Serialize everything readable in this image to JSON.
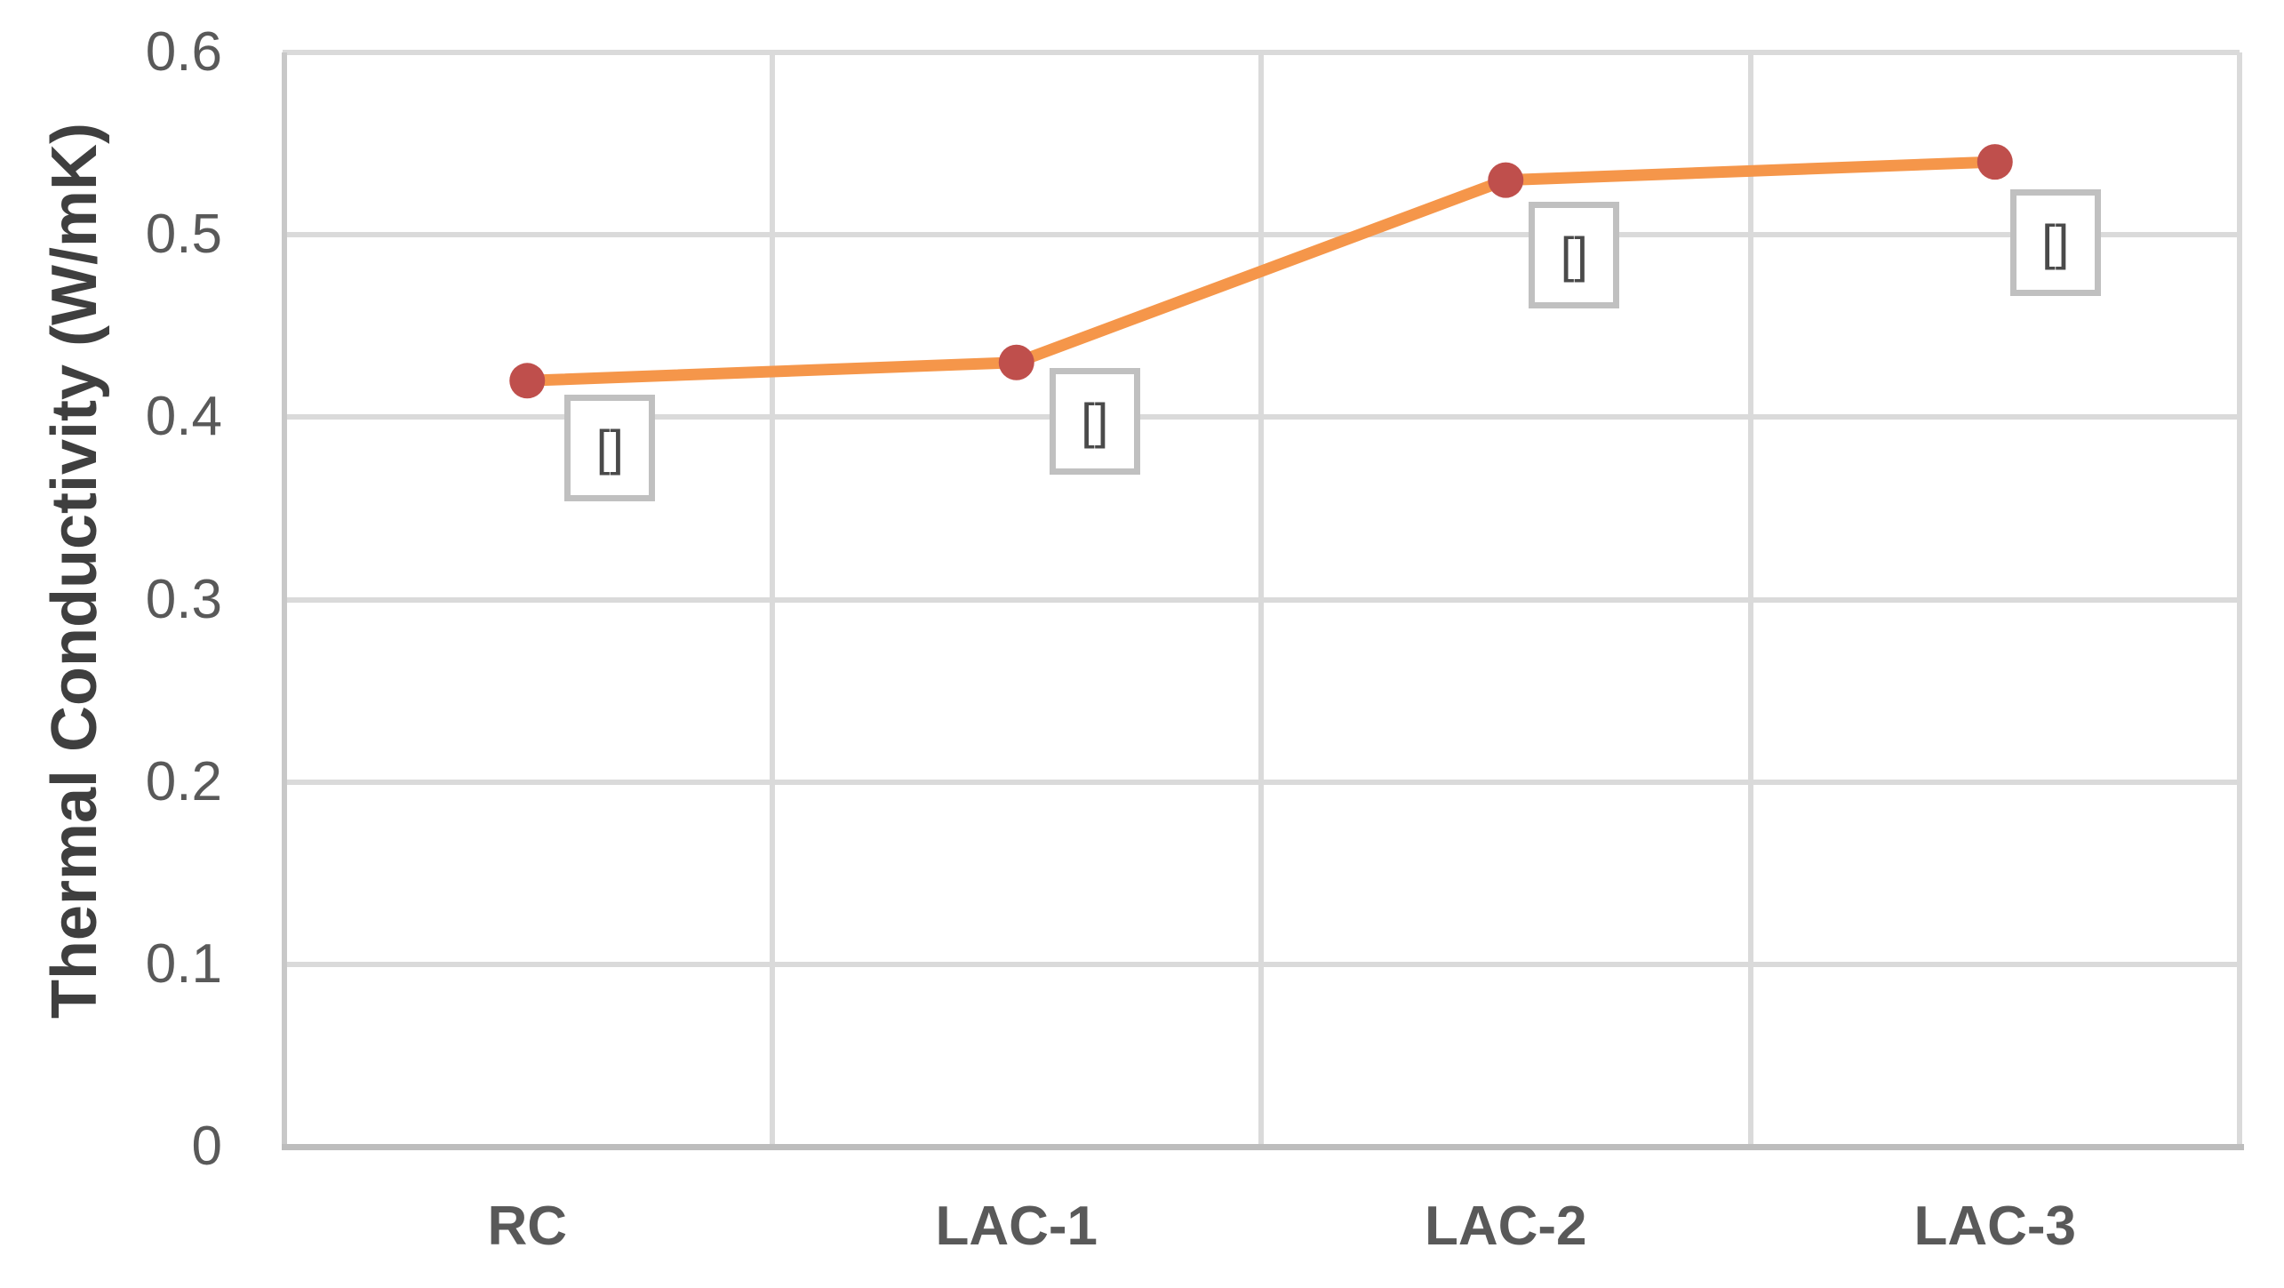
{
  "chart_data": {
    "type": "line",
    "categories": [
      "RC",
      "LAC-1",
      "LAC-2",
      "LAC-3"
    ],
    "series": [
      {
        "name": "Thermal Conductivity",
        "values": [
          0.42,
          0.43,
          0.53,
          0.54
        ]
      }
    ],
    "point_labels": [
      "[]",
      "[]",
      "[]",
      "[]"
    ],
    "title": "",
    "xlabel": "",
    "ylabel": "Thermal Conductivity (W/mK)",
    "ylim": [
      0,
      0.6
    ],
    "ytick_step": 0.1,
    "ytick_labels": [
      "0",
      "0.1",
      "0.2",
      "0.3",
      "0.4",
      "0.5",
      "0.6"
    ],
    "grid": "horizontal and vertical, light gray",
    "legend": "none"
  },
  "colors": {
    "line": "#f5964a",
    "marker": "#bf4f4c",
    "gridline": "#dadada",
    "axis_left": "#c8c8c8",
    "axis_bottom": "#bdbdbd",
    "tick_text": "#595959",
    "axis_title_text": "#3f3f3f",
    "label_box_border": "#c0c0c0",
    "label_box_fill": "#ffffff",
    "label_box_text": "#4a4a4a"
  }
}
